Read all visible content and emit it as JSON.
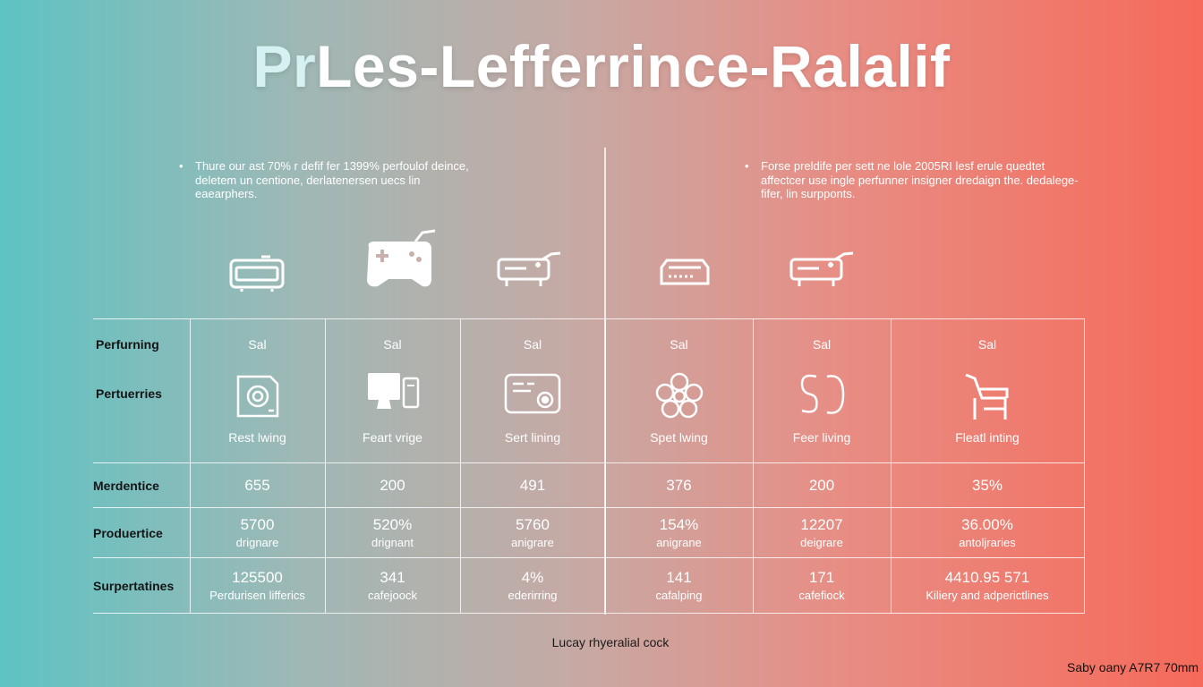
{
  "title": {
    "prefix": "Pr",
    "rest": "Les-Lefferrince-Ralalif"
  },
  "notes": {
    "left": {
      "bullet": "•",
      "text": "Thure our ast 70% r defif fer 1399% perfoulof deince, deletem un centione, derlatenersen uecs lin eaearphers."
    },
    "right": {
      "bullet": "•",
      "text": "Forse preldife per sett ne lole 2005RI lesf erule quedtet affectcer use ingle perfunner insigner dredaign the. dedalege-fifer, lin surpponts."
    }
  },
  "top_icons": [
    "projector-icon",
    "gamepad-icon",
    "printer-icon",
    "router-icon",
    "printer-icon"
  ],
  "row_labels": {
    "r1a": "Perfurning",
    "r1b": "Pertuerries",
    "r2": "Merdentice",
    "r3": "Produertice",
    "r4": "Surpertatines"
  },
  "columns": [
    {
      "sal": "Sal",
      "icon": "camera-icon",
      "label": "Rest lwing",
      "r2": "655",
      "r3_value": "5700",
      "r3_sub": "drignare",
      "r4_value": "125500",
      "r4_sub": "Perdurisen lifferics"
    },
    {
      "sal": "Sal",
      "icon": "computer-icon",
      "label": "Feart vrige",
      "r2": "200",
      "r3_value": "520%",
      "r3_sub": "drignant",
      "r4_value": "341",
      "r4_sub": "cafejoock"
    },
    {
      "sal": "Sal",
      "icon": "device-icon",
      "label": "Sert lining",
      "r2": "491",
      "r3_value": "5760",
      "r3_sub": "anigrare",
      "r4_value": "4%",
      "r4_sub": "ederirring"
    },
    {
      "sal": "Sal",
      "icon": "flower-icon",
      "label": "Spet lwing",
      "r2": "376",
      "r3_value": "154%",
      "r3_sub": "anigrane",
      "r4_value": "141",
      "r4_sub": "cafalping"
    },
    {
      "sal": "Sal",
      "icon": "symbol-icon",
      "label": "Feer living",
      "r2": "200",
      "r3_value": "12207",
      "r3_sub": "deigrare",
      "r4_value": "171",
      "r4_sub": "cafefiock"
    },
    {
      "sal": "Sal",
      "icon": "chair-icon",
      "label": "Fleatl inting",
      "r2": "35%",
      "r3_value": "36.00%",
      "r3_sub": "antoljraries",
      "r4_value": "4410.95 571",
      "r4_sub": "Kiliery and adperictlines"
    }
  ],
  "footer": {
    "center": "Lucay rhyeralial cock",
    "right": "Saby oany A7R7 70mm"
  }
}
